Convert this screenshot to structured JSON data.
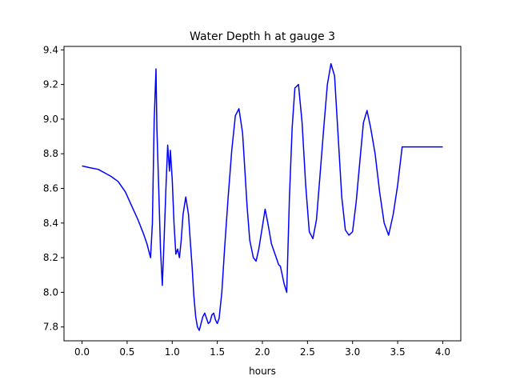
{
  "chart_data": {
    "type": "line",
    "title": "Water Depth h at gauge 3",
    "xlabel": "hours",
    "ylabel": "",
    "xlim": [
      -0.2,
      4.2
    ],
    "ylim": [
      7.72,
      9.42
    ],
    "x_ticks": [
      0.0,
      0.5,
      1.0,
      1.5,
      2.0,
      2.5,
      3.0,
      3.5,
      4.0
    ],
    "x_tick_labels": [
      "0.0",
      "0.5",
      "1.0",
      "1.5",
      "2.0",
      "2.5",
      "3.0",
      "3.5",
      "4.0"
    ],
    "y_ticks": [
      7.8,
      8.0,
      8.2,
      8.4,
      8.6,
      8.8,
      9.0,
      9.2,
      9.4
    ],
    "y_tick_labels": [
      "7.8",
      "8.0",
      "8.2",
      "8.4",
      "8.6",
      "8.8",
      "9.0",
      "9.2",
      "9.4"
    ],
    "grid": false,
    "legend": "none",
    "series": [
      {
        "color": "#0000ff",
        "x": [
          0.0,
          0.08,
          0.18,
          0.25,
          0.32,
          0.4,
          0.48,
          0.55,
          0.62,
          0.68,
          0.72,
          0.76,
          0.78,
          0.8,
          0.82,
          0.83,
          0.85,
          0.87,
          0.89,
          0.91,
          0.93,
          0.95,
          0.97,
          0.98,
          1.0,
          1.02,
          1.04,
          1.06,
          1.08,
          1.1,
          1.12,
          1.15,
          1.18,
          1.2,
          1.22,
          1.24,
          1.26,
          1.28,
          1.3,
          1.32,
          1.34,
          1.36,
          1.38,
          1.4,
          1.42,
          1.44,
          1.46,
          1.48,
          1.5,
          1.52,
          1.55,
          1.58,
          1.62,
          1.66,
          1.7,
          1.74,
          1.78,
          1.8,
          1.83,
          1.86,
          1.9,
          1.93,
          1.96,
          2.0,
          2.03,
          2.06,
          2.1,
          2.14,
          2.18,
          2.2,
          2.24,
          2.27,
          2.3,
          2.33,
          2.36,
          2.4,
          2.44,
          2.48,
          2.52,
          2.56,
          2.6,
          2.64,
          2.68,
          2.72,
          2.76,
          2.8,
          2.84,
          2.88,
          2.92,
          2.96,
          3.0,
          3.04,
          3.08,
          3.12,
          3.16,
          3.2,
          3.25,
          3.3,
          3.35,
          3.4,
          3.45,
          3.5,
          3.55,
          3.6,
          3.65,
          3.7,
          3.75,
          3.8,
          3.85,
          3.9,
          3.95,
          4.0
        ],
        "y": [
          8.73,
          8.72,
          8.71,
          8.69,
          8.67,
          8.64,
          8.58,
          8.5,
          8.42,
          8.34,
          8.28,
          8.2,
          8.4,
          8.99,
          9.29,
          8.95,
          8.6,
          8.25,
          8.04,
          8.3,
          8.6,
          8.85,
          8.7,
          8.82,
          8.65,
          8.4,
          8.22,
          8.25,
          8.2,
          8.3,
          8.45,
          8.55,
          8.45,
          8.3,
          8.15,
          7.98,
          7.86,
          7.8,
          7.78,
          7.82,
          7.86,
          7.88,
          7.85,
          7.82,
          7.83,
          7.87,
          7.88,
          7.84,
          7.82,
          7.85,
          8.0,
          8.25,
          8.55,
          8.82,
          9.02,
          9.06,
          8.92,
          8.75,
          8.5,
          8.3,
          8.2,
          8.18,
          8.25,
          8.38,
          8.48,
          8.4,
          8.28,
          8.22,
          8.16,
          8.15,
          8.05,
          8.0,
          8.55,
          8.95,
          9.18,
          9.2,
          8.98,
          8.62,
          8.35,
          8.31,
          8.42,
          8.68,
          8.95,
          9.2,
          9.32,
          9.25,
          8.9,
          8.55,
          8.36,
          8.33,
          8.35,
          8.52,
          8.75,
          8.98,
          9.05,
          8.95,
          8.8,
          8.58,
          8.4,
          8.33,
          8.45,
          8.62,
          8.84,
          8.84,
          8.84,
          8.84,
          8.84,
          8.84,
          8.84,
          8.84,
          8.84,
          8.84
        ]
      }
    ]
  }
}
